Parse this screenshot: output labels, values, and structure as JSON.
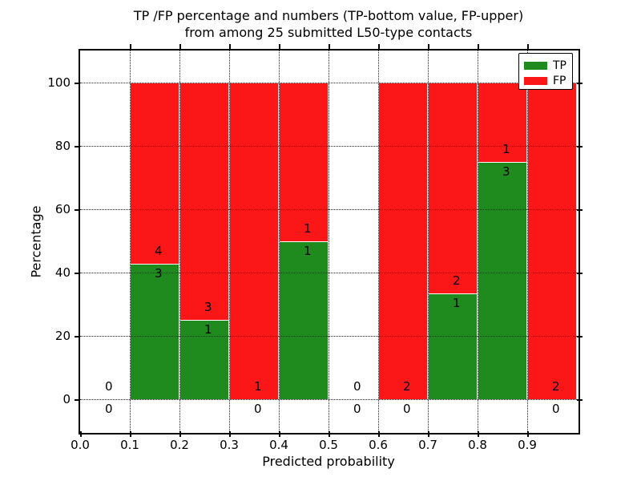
{
  "figure": {
    "kind": "matplotlib-style stacked bar chart"
  },
  "chart_data": {
    "type": "bar",
    "stacked": true,
    "title_lines": [
      "TP /FP percentage and numbers (TP-bottom value, FP-upper)",
      "from among 25 submitted L50-type contacts"
    ],
    "xlabel": "Predicted probability",
    "ylabel": "Percentage",
    "x_tick_labels": [
      "0.0",
      "0.1",
      "0.2",
      "0.3",
      "0.4",
      "0.5",
      "0.6",
      "0.7",
      "0.8",
      "0.9"
    ],
    "x_tick_values": [
      0.0,
      0.1,
      0.2,
      0.3,
      0.4,
      0.5,
      0.6,
      0.7,
      0.8,
      0.9
    ],
    "y_tick_labels": [
      "0",
      "20",
      "40",
      "60",
      "80",
      "100"
    ],
    "y_tick_values": [
      0,
      20,
      40,
      60,
      80,
      100
    ],
    "xlim": [
      0.0,
      1.0
    ],
    "ylim": [
      -10,
      110
    ],
    "grid": true,
    "legend": {
      "position": "upper right"
    },
    "series": [
      {
        "name": "TP",
        "color": "#1f8b1f"
      },
      {
        "name": "FP",
        "color": "#fb1717"
      }
    ],
    "bins": [
      {
        "x0": 0.0,
        "x1": 0.1,
        "tp": 0,
        "fp": 0
      },
      {
        "x0": 0.1,
        "x1": 0.2,
        "tp": 3,
        "fp": 4
      },
      {
        "x0": 0.2,
        "x1": 0.3,
        "tp": 1,
        "fp": 3
      },
      {
        "x0": 0.3,
        "x1": 0.4,
        "tp": 0,
        "fp": 1
      },
      {
        "x0": 0.4,
        "x1": 0.5,
        "tp": 1,
        "fp": 1
      },
      {
        "x0": 0.5,
        "x1": 0.6,
        "tp": 0,
        "fp": 0
      },
      {
        "x0": 0.6,
        "x1": 0.7,
        "tp": 0,
        "fp": 2
      },
      {
        "x0": 0.7,
        "x1": 0.8,
        "tp": 1,
        "fp": 2
      },
      {
        "x0": 0.8,
        "x1": 0.9,
        "tp": 3,
        "fp": 1
      },
      {
        "x0": 0.9,
        "x1": 1.0,
        "tp": 0,
        "fp": 2
      }
    ],
    "total_contacts": 25
  }
}
